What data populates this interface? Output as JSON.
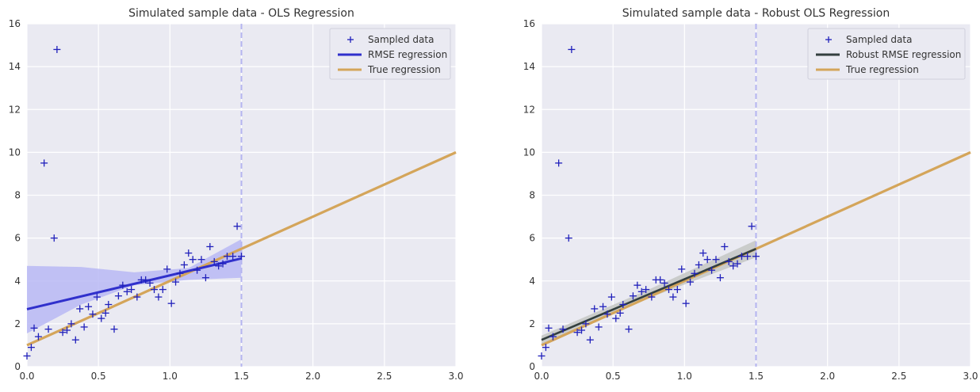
{
  "colors": {
    "plot_bg": "#eaeaf2",
    "grid": "#ffffff",
    "sample": "#2020bb",
    "rmse_line": "#3030cc",
    "robust_line": "#333f3f",
    "true_line": "#d4a55a",
    "band_ols": "#b8b8f4",
    "band_robust": "#c6c9c6",
    "vline": "#b4b4f0",
    "text": "#333333"
  },
  "chart_data": [
    {
      "type": "scatter",
      "title": "Simulated sample data - OLS Regression",
      "xlabel": "",
      "ylabel": "",
      "xlim": [
        0.0,
        3.0
      ],
      "ylim": [
        0,
        16
      ],
      "xticks": [
        "0.0",
        "0.5",
        "1.0",
        "1.5",
        "2.0",
        "2.5",
        "3.0"
      ],
      "yticks": [
        "0",
        "2",
        "4",
        "6",
        "8",
        "10",
        "12",
        "14",
        "16"
      ],
      "grid": true,
      "legend_position": "top-right",
      "vline_x": 1.5,
      "series": [
        {
          "name": "Sampled data",
          "kind": "points",
          "marker": "+",
          "points": [
            [
              0.0,
              0.5
            ],
            [
              0.03,
              0.9
            ],
            [
              0.05,
              1.8
            ],
            [
              0.08,
              1.4
            ],
            [
              0.12,
              9.5
            ],
            [
              0.15,
              1.75
            ],
            [
              0.19,
              6.0
            ],
            [
              0.21,
              14.8
            ],
            [
              0.25,
              1.6
            ],
            [
              0.28,
              1.7
            ],
            [
              0.31,
              2.0
            ],
            [
              0.34,
              1.25
            ],
            [
              0.37,
              2.7
            ],
            [
              0.4,
              1.85
            ],
            [
              0.43,
              2.8
            ],
            [
              0.46,
              2.45
            ],
            [
              0.49,
              3.25
            ],
            [
              0.52,
              2.25
            ],
            [
              0.55,
              2.5
            ],
            [
              0.57,
              2.9
            ],
            [
              0.61,
              1.75
            ],
            [
              0.64,
              3.3
            ],
            [
              0.67,
              3.8
            ],
            [
              0.7,
              3.5
            ],
            [
              0.73,
              3.6
            ],
            [
              0.77,
              3.25
            ],
            [
              0.8,
              4.05
            ],
            [
              0.83,
              4.05
            ],
            [
              0.86,
              3.9
            ],
            [
              0.89,
              3.6
            ],
            [
              0.92,
              3.25
            ],
            [
              0.95,
              3.6
            ],
            [
              0.98,
              4.55
            ],
            [
              1.01,
              2.95
            ],
            [
              1.04,
              3.95
            ],
            [
              1.07,
              4.35
            ],
            [
              1.1,
              4.75
            ],
            [
              1.13,
              5.3
            ],
            [
              1.16,
              5.0
            ],
            [
              1.19,
              4.5
            ],
            [
              1.22,
              5.0
            ],
            [
              1.25,
              4.15
            ],
            [
              1.28,
              5.6
            ],
            [
              1.31,
              4.9
            ],
            [
              1.34,
              4.7
            ],
            [
              1.37,
              4.8
            ],
            [
              1.4,
              5.15
            ],
            [
              1.44,
              5.15
            ],
            [
              1.47,
              6.55
            ],
            [
              1.5,
              5.15
            ]
          ]
        },
        {
          "name": "RMSE regression",
          "kind": "line",
          "points": [
            [
              0.0,
              2.68
            ],
            [
              1.5,
              5.05
            ]
          ],
          "band": [
            [
              0.0,
              1.55,
              4.7
            ],
            [
              0.38,
              2.9,
              4.65
            ],
            [
              0.75,
              3.8,
              4.4
            ],
            [
              1.13,
              4.05,
              4.6
            ],
            [
              1.5,
              4.15,
              5.95
            ]
          ]
        },
        {
          "name": "True regression",
          "kind": "line",
          "points": [
            [
              0.0,
              1.0
            ],
            [
              3.0,
              10.0
            ]
          ]
        }
      ]
    },
    {
      "type": "scatter",
      "title": "Simulated sample data - Robust OLS Regression",
      "xlabel": "",
      "ylabel": "",
      "xlim": [
        0.0,
        3.0
      ],
      "ylim": [
        0,
        16
      ],
      "xticks": [
        "0.0",
        "0.5",
        "1.0",
        "1.5",
        "2.0",
        "2.5",
        "3.0"
      ],
      "yticks": [
        "0",
        "2",
        "4",
        "6",
        "8",
        "10",
        "12",
        "14",
        "16"
      ],
      "grid": true,
      "legend_position": "top-right",
      "vline_x": 1.5,
      "series": [
        {
          "name": "Sampled data",
          "kind": "points",
          "marker": "+",
          "points": [
            [
              0.0,
              0.5
            ],
            [
              0.03,
              0.9
            ],
            [
              0.05,
              1.8
            ],
            [
              0.08,
              1.4
            ],
            [
              0.12,
              9.5
            ],
            [
              0.15,
              1.75
            ],
            [
              0.19,
              6.0
            ],
            [
              0.21,
              14.8
            ],
            [
              0.25,
              1.6
            ],
            [
              0.28,
              1.7
            ],
            [
              0.31,
              2.0
            ],
            [
              0.34,
              1.25
            ],
            [
              0.37,
              2.7
            ],
            [
              0.4,
              1.85
            ],
            [
              0.43,
              2.8
            ],
            [
              0.46,
              2.45
            ],
            [
              0.49,
              3.25
            ],
            [
              0.52,
              2.25
            ],
            [
              0.55,
              2.5
            ],
            [
              0.57,
              2.9
            ],
            [
              0.61,
              1.75
            ],
            [
              0.64,
              3.3
            ],
            [
              0.67,
              3.8
            ],
            [
              0.7,
              3.5
            ],
            [
              0.73,
              3.6
            ],
            [
              0.77,
              3.25
            ],
            [
              0.8,
              4.05
            ],
            [
              0.83,
              4.05
            ],
            [
              0.86,
              3.9
            ],
            [
              0.89,
              3.6
            ],
            [
              0.92,
              3.25
            ],
            [
              0.95,
              3.6
            ],
            [
              0.98,
              4.55
            ],
            [
              1.01,
              2.95
            ],
            [
              1.04,
              3.95
            ],
            [
              1.07,
              4.35
            ],
            [
              1.1,
              4.75
            ],
            [
              1.13,
              5.3
            ],
            [
              1.16,
              5.0
            ],
            [
              1.19,
              4.5
            ],
            [
              1.22,
              5.0
            ],
            [
              1.25,
              4.15
            ],
            [
              1.28,
              5.6
            ],
            [
              1.31,
              4.9
            ],
            [
              1.34,
              4.7
            ],
            [
              1.37,
              4.8
            ],
            [
              1.4,
              5.15
            ],
            [
              1.44,
              5.15
            ],
            [
              1.47,
              6.55
            ],
            [
              1.5,
              5.15
            ]
          ]
        },
        {
          "name": "Robust RMSE regression",
          "kind": "line",
          "points": [
            [
              0.0,
              1.25
            ],
            [
              1.5,
              5.5
            ]
          ],
          "band": [
            [
              0.0,
              1.05,
              1.45
            ],
            [
              0.75,
              3.2,
              3.6
            ],
            [
              1.5,
              5.1,
              5.9
            ]
          ]
        },
        {
          "name": "True regression",
          "kind": "line",
          "points": [
            [
              0.0,
              1.0
            ],
            [
              3.0,
              10.0
            ]
          ]
        }
      ]
    }
  ]
}
